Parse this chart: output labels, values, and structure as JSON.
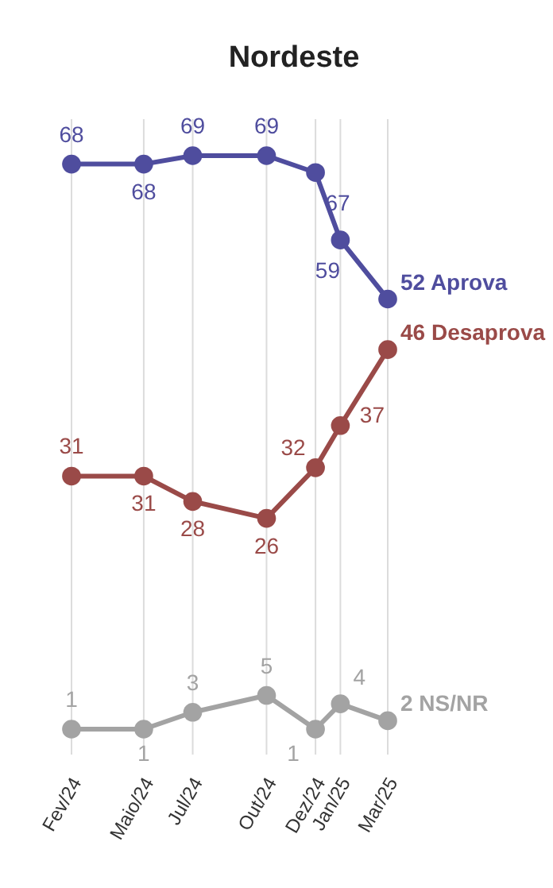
{
  "chart_data": {
    "type": "line",
    "title": "Nordeste",
    "x": [
      "2024-02",
      "2024-05",
      "2024-07",
      "2024-10",
      "2024-12",
      "2025-01",
      "2025-03"
    ],
    "xlim": [
      "2024-02",
      "2025-03"
    ],
    "xticks": [
      {
        "value": "2024-02",
        "label": "Fev/24"
      },
      {
        "value": "2024-05",
        "label": "Maio/24"
      },
      {
        "value": "2024-07",
        "label": "Jul/24"
      },
      {
        "value": "2024-10",
        "label": "Out/24"
      },
      {
        "value": "2024-12",
        "label": "Dez/24"
      },
      {
        "value": "2025-01",
        "label": "Jan/25"
      },
      {
        "value": "2025-03",
        "label": "Mar/25"
      }
    ],
    "tick_labels": "x",
    "grid": "x",
    "marker": "circle",
    "line_style": "solid",
    "data_labels": true,
    "series": [
      {
        "name": "Aprova",
        "color": "#4f4d9e",
        "values": [
          68,
          68,
          69,
          69,
          67,
          59,
          52
        ]
      },
      {
        "name": "Desaprova",
        "color": "#9a4a48",
        "values": [
          31,
          31,
          28,
          26,
          32,
          37,
          46
        ]
      },
      {
        "name": "NS/NR",
        "color": "#a3a3a3",
        "values": [
          1,
          1,
          3,
          5,
          1,
          4,
          2
        ]
      }
    ]
  }
}
